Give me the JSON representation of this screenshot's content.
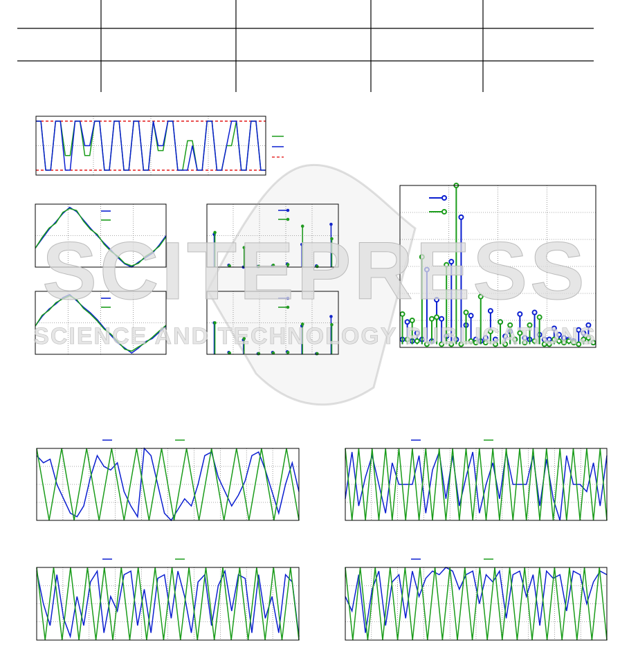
{
  "watermark": {
    "title": "SCITEPRESS",
    "subtitle": "SCIENCE AND TECHNOLOGY PUBLICATIONS"
  },
  "chart_data": [
    {
      "type": "line",
      "ylim": [
        -0.1,
        1.1
      ],
      "hlines": [
        0,
        1
      ],
      "hline_color": "#e00000",
      "series": [
        {
          "color": "#1a9c1a",
          "values": [
            1,
            1,
            0,
            0,
            1,
            1,
            0.3,
            0.3,
            1,
            1,
            0.3,
            0.3,
            1,
            1,
            0,
            0,
            1,
            1,
            0,
            0,
            1,
            1,
            0,
            0,
            1,
            0.4,
            0.4,
            1,
            1,
            0,
            0,
            0.6,
            0.6,
            0,
            0,
            1,
            1,
            0,
            0,
            0.5,
            0.5,
            1,
            0,
            0,
            1,
            1,
            0,
            0
          ]
        },
        {
          "color": "#0a1ed0",
          "values": [
            1,
            1,
            0,
            0,
            1,
            1,
            0,
            0,
            1,
            1,
            0.5,
            0.5,
            1,
            1,
            0,
            0,
            1,
            1,
            0,
            0,
            1,
            1,
            0,
            0,
            1,
            0.5,
            0.5,
            1,
            1,
            0,
            0,
            0,
            0.5,
            0,
            0,
            1,
            1,
            0,
            0,
            0.5,
            1,
            1,
            0,
            0,
            1,
            1,
            0,
            0
          ]
        }
      ]
    },
    {
      "type": "line",
      "ylim": [
        0,
        1
      ],
      "series": [
        {
          "color": "#0a1ed0",
          "values": [
            0.3,
            0.45,
            0.6,
            0.72,
            0.85,
            0.95,
            0.88,
            0.75,
            0.62,
            0.5,
            0.38,
            0.27,
            0.15,
            0.05,
            0.0,
            0.08,
            0.15,
            0.22,
            0.35,
            0.5
          ]
        },
        {
          "color": "#1a9c1a",
          "values": [
            0.3,
            0.47,
            0.62,
            0.7,
            0.87,
            0.93,
            0.9,
            0.73,
            0.6,
            0.52,
            0.36,
            0.25,
            0.17,
            0.06,
            0.02,
            0.06,
            0.17,
            0.24,
            0.33,
            0.48
          ]
        }
      ]
    },
    {
      "type": "line",
      "ylim": [
        0,
        1
      ],
      "series": [
        {
          "color": "#0a1ed0",
          "values": [
            0.45,
            0.6,
            0.72,
            0.8,
            0.9,
            0.95,
            0.85,
            0.75,
            0.66,
            0.55,
            0.42,
            0.3,
            0.18,
            0.1,
            0.02,
            0.1,
            0.2,
            0.25,
            0.35,
            0.45
          ]
        },
        {
          "color": "#1a9c1a",
          "values": [
            0.45,
            0.62,
            0.7,
            0.82,
            0.88,
            0.93,
            0.87,
            0.73,
            0.64,
            0.53,
            0.4,
            0.32,
            0.2,
            0.08,
            0.05,
            0.12,
            0.18,
            0.27,
            0.37,
            0.46
          ]
        }
      ]
    },
    {
      "type": "stem",
      "ylim": [
        0,
        1
      ],
      "series": [
        {
          "color": "#0a1ed0",
          "values": [
            0.52,
            0.03,
            0,
            0.01,
            0.02,
            0.05,
            0.36,
            0.02,
            0.68
          ]
        },
        {
          "color": "#1a9c1a",
          "values": [
            0.55,
            0.02,
            0.31,
            0.01,
            0.03,
            0.04,
            0.65,
            0.01,
            0.45
          ]
        }
      ]
    },
    {
      "type": "stem",
      "ylim": [
        0,
        1
      ],
      "series": [
        {
          "color": "#0a1ed0",
          "values": [
            0.5,
            0.03,
            0.23,
            0.01,
            0.03,
            0.04,
            0.45,
            0.01,
            0.6
          ]
        },
        {
          "color": "#1a9c1a",
          "values": [
            0.5,
            0.02,
            0.25,
            0.01,
            0.02,
            0.03,
            0.48,
            0.01,
            0.47
          ]
        }
      ]
    },
    {
      "type": "stem",
      "ylim": [
        -0.02,
        1.0
      ],
      "rings": true,
      "series": [
        {
          "color": "#0a1ed0",
          "values": [
            0.03,
            0.14,
            0.02,
            0.07,
            0.03,
            0.47,
            0.02,
            0.28,
            0.16,
            0.05,
            0.52,
            0.03,
            0.8,
            0.12,
            0.18,
            0.03,
            0.02,
            0.04,
            0.21,
            0.03,
            0.14,
            0.05,
            0.08,
            0.03,
            0.19,
            0.04,
            0.03,
            0.2,
            0.06,
            0.03,
            0.03,
            0.1,
            0.06,
            0.04,
            0.03,
            0.02,
            0.09,
            0.07,
            0.12,
            0.01
          ]
        },
        {
          "color": "#1a9c1a",
          "values": [
            0.19,
            0.03,
            0.15,
            0.02,
            0.55,
            0.0,
            0.16,
            0.17,
            0.0,
            0.5,
            0.0,
            1.0,
            0.0,
            0.2,
            0.02,
            0.01,
            0.3,
            0.01,
            0.08,
            0.0,
            0.14,
            0.0,
            0.12,
            0.03,
            0.07,
            0.01,
            0.12,
            0.02,
            0.17,
            0.0,
            0.0,
            0.03,
            0.02,
            0.01,
            0.02,
            0.01,
            0.0,
            0.03,
            0.04,
            0.01
          ]
        }
      ]
    },
    {
      "type": "line",
      "ylim": [
        0,
        1
      ],
      "series": [
        {
          "color": "#0a1ed0",
          "values": [
            0.9,
            0.8,
            0.85,
            0.5,
            0.3,
            0.1,
            0.05,
            0.2,
            0.6,
            0.9,
            0.75,
            0.7,
            0.8,
            0.4,
            0.2,
            0.05,
            1.0,
            0.9,
            0.5,
            0.1,
            0.0,
            0.15,
            0.3,
            0.2,
            0.5,
            0.9,
            0.95,
            0.6,
            0.4,
            0.2,
            0.35,
            0.55,
            0.9,
            0.95,
            0.7,
            0.4,
            0.1,
            0.5,
            0.8,
            0.4
          ]
        },
        {
          "color": "#1a9c1a",
          "values": [
            1,
            0,
            1,
            0,
            1,
            0,
            1,
            0,
            1,
            0,
            1,
            0,
            1,
            0,
            1,
            0,
            1,
            0,
            1,
            0,
            1,
            0
          ]
        }
      ]
    },
    {
      "type": "line",
      "ylim": [
        0,
        1
      ],
      "series": [
        {
          "color": "#0a1ed0",
          "values": [
            0.3,
            0.95,
            0.2,
            0.6,
            0.9,
            0.5,
            0.1,
            0.8,
            0.5,
            0.5,
            0.5,
            0.9,
            0.1,
            0.7,
            0.95,
            0.3,
            0.9,
            0.2,
            0.6,
            0.95,
            0.1,
            0.5,
            0.8,
            0.3,
            0.95,
            0.5,
            0.5,
            0.5,
            0.9,
            0.2,
            0.85,
            0.3,
            0.0,
            0.9,
            0.5,
            0.5,
            0.4,
            0.8,
            0.2,
            0.9
          ]
        },
        {
          "color": "#1a9c1a",
          "values": [
            1,
            0,
            1,
            0,
            1,
            0,
            1,
            0,
            1,
            0,
            1,
            0,
            1,
            0,
            1,
            0,
            1,
            0,
            1,
            0,
            1,
            0,
            1,
            0,
            1,
            0,
            1,
            0,
            1,
            0,
            1,
            0,
            1,
            0,
            1,
            0,
            1,
            0,
            1,
            0
          ]
        }
      ]
    },
    {
      "type": "line",
      "ylim": [
        0,
        1
      ],
      "series": [
        {
          "color": "#0a1ed0",
          "values": [
            0.95,
            0.5,
            0.2,
            0.9,
            0.3,
            0.05,
            0.6,
            0.2,
            0.8,
            0.95,
            0.1,
            0.6,
            0.4,
            0.9,
            0.95,
            0.2,
            0.7,
            0.1,
            0.85,
            0.9,
            0.3,
            0.95,
            0.6,
            0.1,
            0.8,
            0.9,
            0.2,
            0.75,
            0.95,
            0.4,
            0.9,
            0.85,
            0.1,
            0.9,
            0.3,
            0.6,
            0.1,
            0.9,
            0.8,
            0.05
          ]
        },
        {
          "color": "#1a9c1a",
          "values": [
            1,
            0,
            1,
            0,
            1,
            0,
            1,
            0,
            1,
            0,
            1,
            0,
            1,
            0,
            1,
            0,
            1,
            0,
            1,
            0,
            1,
            0,
            1,
            0,
            1,
            0,
            1,
            0,
            1,
            0,
            1,
            0
          ]
        }
      ]
    },
    {
      "type": "line",
      "ylim": [
        0,
        1
      ],
      "series": [
        {
          "color": "#0a1ed0",
          "values": [
            0.6,
            0.4,
            0.9,
            0.1,
            0.7,
            0.95,
            0.2,
            0.8,
            0.9,
            0.3,
            0.95,
            0.6,
            0.85,
            0.95,
            0.9,
            1.0,
            0.95,
            0.7,
            0.9,
            0.95,
            0.5,
            0.9,
            0.8,
            0.95,
            0.3,
            0.9,
            0.95,
            0.6,
            0.9,
            0.2,
            0.95,
            0.85,
            0.9,
            0.4,
            0.95,
            0.9,
            0.5,
            0.8,
            0.95,
            0.9
          ]
        },
        {
          "color": "#1a9c1a",
          "values": [
            1,
            0,
            1,
            0,
            1,
            0,
            1,
            0,
            1,
            0,
            1,
            0,
            1,
            0,
            1,
            0,
            1,
            0,
            1,
            0,
            1,
            0,
            1,
            0,
            1,
            0,
            1,
            0,
            1,
            0,
            1,
            0,
            1,
            0,
            1,
            0
          ]
        }
      ]
    }
  ]
}
